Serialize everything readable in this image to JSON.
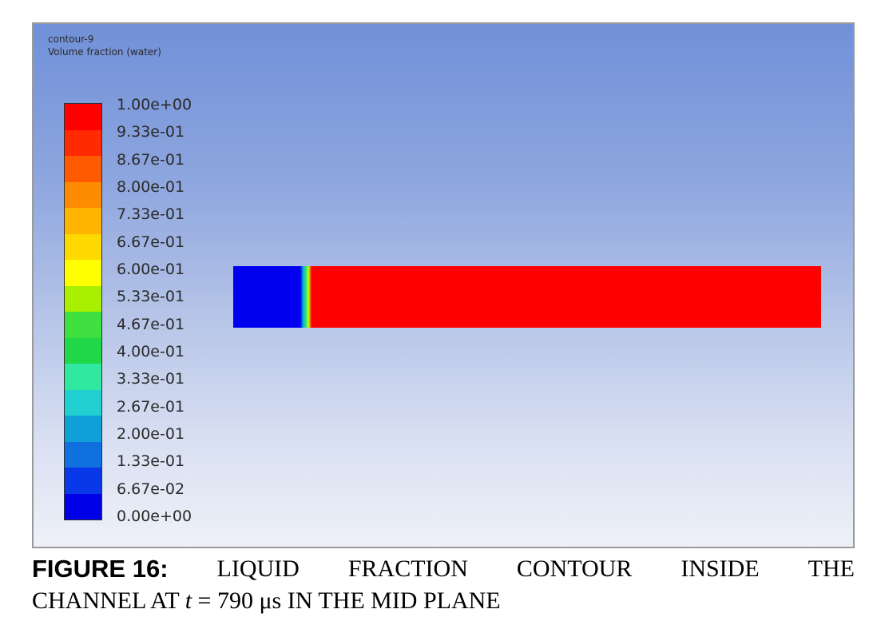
{
  "viewport": {
    "contour_name": "contour-9",
    "variable_name": "Volume fraction (water)",
    "background_top_color": "#7090d8",
    "background_bottom_color": "#eef1f8"
  },
  "legend": {
    "tick_labels": [
      "1.00e+00",
      "9.33e-01",
      "8.67e-01",
      "8.00e-01",
      "7.33e-01",
      "6.67e-01",
      "6.00e-01",
      "5.33e-01",
      "4.67e-01",
      "4.00e-01",
      "3.33e-01",
      "2.67e-01",
      "2.00e-01",
      "1.33e-01",
      "6.67e-02",
      "0.00e+00"
    ],
    "band_colors": [
      "#ff0000",
      "#ff2a00",
      "#ff5a00",
      "#ff8c00",
      "#ffb400",
      "#ffd800",
      "#ffff00",
      "#a8f000",
      "#40e040",
      "#20d848",
      "#30e8a0",
      "#20d0d0",
      "#10a0d8",
      "#1070e0",
      "#0838e8",
      "#0000e8"
    ]
  },
  "channel": {
    "air_color": "#0000ee",
    "water_color": "#ff0000"
  },
  "caption": {
    "label": "FIGURE 16:",
    "words_line1": [
      "LIQUID",
      "FRACTION",
      "CONTOUR",
      "INSIDE",
      "THE"
    ],
    "line2_prefix": "CHANNEL AT",
    "time_variable": "t",
    "line2_suffix": "= 790 μs IN THE MID PLANE"
  }
}
